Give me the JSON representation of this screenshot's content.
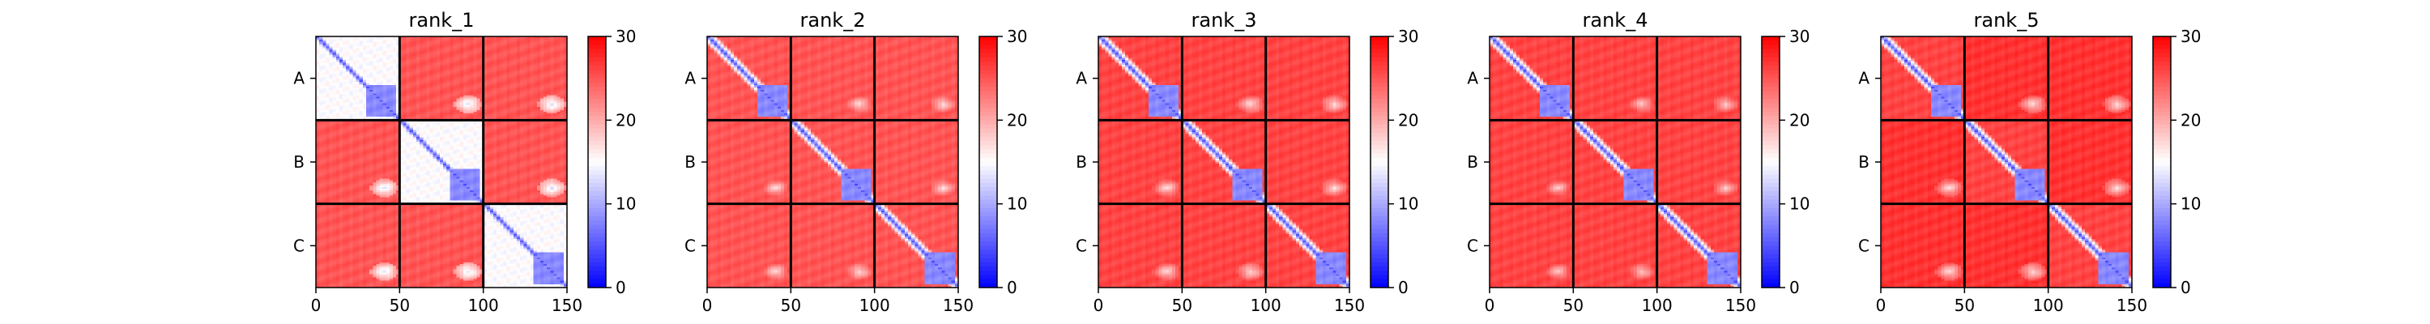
{
  "figure": {
    "background": "#ffffff"
  },
  "chart_data": [
    {
      "type": "heatmap",
      "title": "rank_1",
      "xticks": [
        0,
        50,
        100,
        150
      ],
      "chain_labels": [
        "A",
        "B",
        "C"
      ],
      "xlim": [
        0,
        150
      ],
      "ylim": [
        0,
        150
      ],
      "chain_boundaries": [
        50,
        100
      ],
      "colorbar": {
        "ticks": [
          0,
          10,
          20,
          30
        ],
        "range": [
          0,
          30
        ],
        "colormap": "bwr",
        "colors": [
          "#0000ff",
          "#ffffff",
          "#ff0000"
        ]
      },
      "texture": {
        "diag_band": 5,
        "diag_decay": 3.5,
        "intra_far": 15,
        "inter_far": 25,
        "bump_center": 13
      }
    },
    {
      "type": "heatmap",
      "title": "rank_2",
      "xticks": [
        0,
        50,
        100,
        150
      ],
      "chain_labels": [
        "A",
        "B",
        "C"
      ],
      "xlim": [
        0,
        150
      ],
      "ylim": [
        0,
        150
      ],
      "chain_boundaries": [
        50,
        100
      ],
      "colorbar": {
        "ticks": [
          0,
          10,
          20,
          30
        ],
        "range": [
          0,
          30
        ],
        "colormap": "bwr",
        "colors": [
          "#0000ff",
          "#ffffff",
          "#ff0000"
        ]
      },
      "texture": {
        "diag_band": 5,
        "diag_decay": 3.5,
        "intra_far": 25,
        "inter_far": 25,
        "bump_center": 17
      }
    },
    {
      "type": "heatmap",
      "title": "rank_3",
      "xticks": [
        0,
        50,
        100,
        150
      ],
      "chain_labels": [
        "A",
        "B",
        "C"
      ],
      "xlim": [
        0,
        150
      ],
      "ylim": [
        0,
        150
      ],
      "chain_boundaries": [
        50,
        100
      ],
      "colorbar": {
        "ticks": [
          0,
          10,
          20,
          30
        ],
        "range": [
          0,
          30
        ],
        "colormap": "bwr",
        "colors": [
          "#0000ff",
          "#ffffff",
          "#ff0000"
        ]
      },
      "texture": {
        "diag_band": 5,
        "diag_decay": 3.5,
        "intra_far": 26,
        "inter_far": 26,
        "bump_center": 17
      }
    },
    {
      "type": "heatmap",
      "title": "rank_4",
      "xticks": [
        0,
        50,
        100,
        150
      ],
      "chain_labels": [
        "A",
        "B",
        "C"
      ],
      "xlim": [
        0,
        150
      ],
      "ylim": [
        0,
        150
      ],
      "chain_boundaries": [
        50,
        100
      ],
      "colorbar": {
        "ticks": [
          0,
          10,
          20,
          30
        ],
        "range": [
          0,
          30
        ],
        "colormap": "bwr",
        "colors": [
          "#0000ff",
          "#ffffff",
          "#ff0000"
        ]
      },
      "texture": {
        "diag_band": 5,
        "diag_decay": 3.5,
        "intra_far": 26,
        "inter_far": 26,
        "bump_center": 18
      }
    },
    {
      "type": "heatmap",
      "title": "rank_5",
      "xticks": [
        0,
        50,
        100,
        150
      ],
      "chain_labels": [
        "A",
        "B",
        "C"
      ],
      "xlim": [
        0,
        150
      ],
      "ylim": [
        0,
        150
      ],
      "chain_boundaries": [
        50,
        100
      ],
      "colorbar": {
        "ticks": [
          0,
          10,
          20,
          30
        ],
        "range": [
          0,
          30
        ],
        "colormap": "bwr",
        "colors": [
          "#0000ff",
          "#ffffff",
          "#ff0000"
        ]
      },
      "texture": {
        "diag_band": 5,
        "diag_decay": 3.5,
        "intra_far": 26,
        "inter_far": 27,
        "bump_center": 17
      }
    }
  ]
}
